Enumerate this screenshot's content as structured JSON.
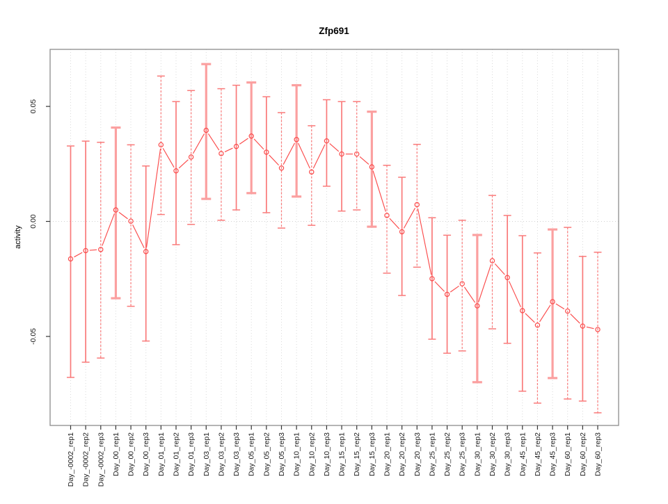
{
  "chart_data": {
    "type": "line",
    "title": "Zfp691",
    "xlabel": "",
    "ylabel": "activity",
    "ylim": [
      -0.0887,
      0.0748
    ],
    "yticks": [
      0.05,
      0.0,
      -0.05
    ],
    "ytick_labels": [
      "0.05",
      "0.00",
      "-0.05"
    ],
    "grid": "dotted vertical gridline at every category; dotted horizontal line at y=0",
    "legend": "none",
    "colors": {
      "series": "#fb4a4a",
      "errorbar_thin": "#f97a7a",
      "errorbar_thick": "#fba0a0",
      "gridline": "#d9d9d9",
      "zero_line": "#d0d0d0",
      "box": "#8c8c8c",
      "tick": "#333333"
    },
    "categories": [
      "Day_-0002_rep1",
      "Day_-0002_rep2",
      "Day_-0002_rep3",
      "Day_00_rep1",
      "Day_00_rep2",
      "Day_00_rep3",
      "Day_01_rep1",
      "Day_01_rep2",
      "Day_01_rep3",
      "Day_03_rep1",
      "Day_03_rep2",
      "Day_03_rep3",
      "Day_05_rep1",
      "Day_05_rep2",
      "Day_05_rep3",
      "Day_10_rep1",
      "Day_10_rep2",
      "Day_10_rep3",
      "Day_15_rep1",
      "Day_15_rep2",
      "Day_15_rep3",
      "Day_20_rep1",
      "Day_20_rep2",
      "Day_20_rep3",
      "Day_25_rep1",
      "Day_25_rep2",
      "Day_25_rep3",
      "Day_30_rep1",
      "Day_30_rep2",
      "Day_30_rep3",
      "Day_45_rep1",
      "Day_45_rep2",
      "Day_45_rep3",
      "Day_60_rep1",
      "Day_60_rep2",
      "Day_60_rep3"
    ],
    "values": [
      -0.0163,
      -0.0127,
      -0.0122,
      0.005,
      0.0001,
      -0.0131,
      0.0333,
      0.022,
      0.028,
      0.0396,
      0.0295,
      0.0326,
      0.0371,
      0.0301,
      0.0232,
      0.0356,
      0.0215,
      0.035,
      0.0293,
      0.0293,
      0.0237,
      0.0026,
      -0.0045,
      0.0073,
      -0.0249,
      -0.0317,
      -0.0271,
      -0.0367,
      -0.0171,
      -0.0244,
      -0.0388,
      -0.0451,
      -0.0349,
      -0.039,
      -0.0455,
      -0.047
    ],
    "error_low": [
      -0.0678,
      -0.0612,
      -0.0594,
      -0.0334,
      -0.0369,
      -0.052,
      0.003,
      -0.0101,
      -0.0013,
      0.0098,
      0.0005,
      0.005,
      0.0123,
      0.0038,
      -0.0029,
      0.0108,
      -0.0017,
      0.0153,
      0.0045,
      0.005,
      -0.0023,
      -0.0225,
      -0.0322,
      -0.0199,
      -0.0512,
      -0.0573,
      -0.0563,
      -0.0699,
      -0.0467,
      -0.053,
      -0.0738,
      -0.079,
      -0.0681,
      -0.0772,
      -0.0781,
      -0.0832
    ],
    "error_high": [
      0.0328,
      0.0349,
      0.0344,
      0.0408,
      0.0333,
      0.0241,
      0.0632,
      0.0521,
      0.0569,
      0.0684,
      0.0577,
      0.0592,
      0.0604,
      0.0542,
      0.0473,
      0.0592,
      0.0416,
      0.0529,
      0.0521,
      0.0521,
      0.0477,
      0.0244,
      0.0192,
      0.0335,
      0.0016,
      -0.006,
      0.0005,
      -0.0059,
      0.0113,
      0.0026,
      -0.0062,
      -0.0137,
      -0.0035,
      -0.0026,
      -0.0152,
      -0.0134
    ],
    "bar_styles": [
      "thin",
      "thin",
      "dashed",
      "thick",
      "dashed",
      "thin",
      "dashed",
      "thin",
      "dashed",
      "thick",
      "dashed",
      "thin",
      "thick",
      "thin",
      "dashed",
      "thick",
      "dashed",
      "thin",
      "thin",
      "dashed",
      "thick",
      "dashed",
      "thin",
      "dashed",
      "thin",
      "thin",
      "dashed",
      "thick",
      "dashed",
      "thin",
      "thin",
      "dashed",
      "thick",
      "dashed",
      "thin",
      "dashed"
    ]
  }
}
